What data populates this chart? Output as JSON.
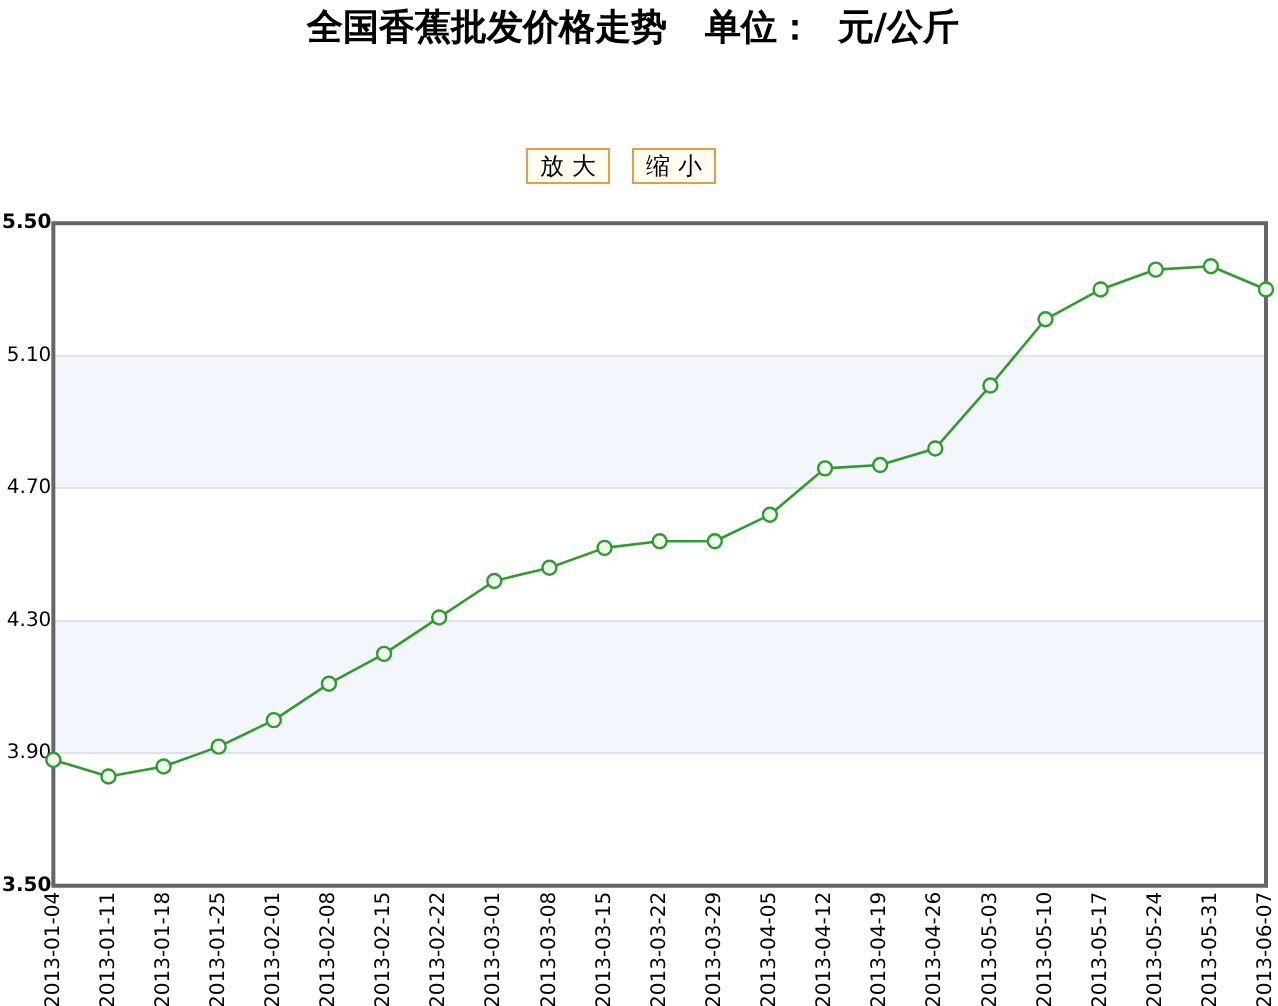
{
  "chart_data": {
    "type": "line",
    "title": "全国香蕉批发价格走势   单位：  元/公斤",
    "annotations": [
      "放 大",
      "缩 小"
    ],
    "categories": [
      "2013-01-04",
      "2013-01-11",
      "2013-01-18",
      "2013-01-25",
      "2013-02-01",
      "2013-02-08",
      "2013-02-15",
      "2013-02-22",
      "2013-03-01",
      "2013-03-08",
      "2013-03-15",
      "2013-03-22",
      "2013-03-29",
      "2013-04-05",
      "2013-04-12",
      "2013-04-19",
      "2013-04-26",
      "2013-05-03",
      "2013-05-10",
      "2013-05-17",
      "2013-05-24",
      "2013-05-31",
      "2013-06-07"
    ],
    "series": [
      {
        "color": "#339933",
        "values": [
          3.88,
          3.83,
          3.86,
          3.92,
          4.0,
          4.11,
          4.2,
          4.31,
          4.42,
          4.46,
          4.52,
          4.54,
          4.54,
          4.62,
          4.76,
          4.77,
          4.82,
          5.01,
          5.21,
          5.3,
          5.36,
          5.37,
          5.3
        ]
      }
    ],
    "ylim": [
      3.5,
      5.5
    ],
    "yticks": [
      {
        "value": 3.5,
        "label": "3.50"
      },
      {
        "value": 3.9,
        "label": "3.90"
      },
      {
        "value": 4.3,
        "label": "4.30"
      },
      {
        "value": 4.7,
        "label": "4.70"
      },
      {
        "value": 5.1,
        "label": "5.10"
      },
      {
        "value": 5.5,
        "label": "5.50"
      }
    ],
    "bands": [
      {
        "axis": "y",
        "from": 3.9,
        "to": 4.3,
        "color": "#f3f7fd"
      },
      {
        "axis": "y",
        "from": 4.7,
        "to": 5.1,
        "color": "#f3f7fd"
      }
    ],
    "grid": "y",
    "marker": "circle",
    "line_style": "solid"
  }
}
